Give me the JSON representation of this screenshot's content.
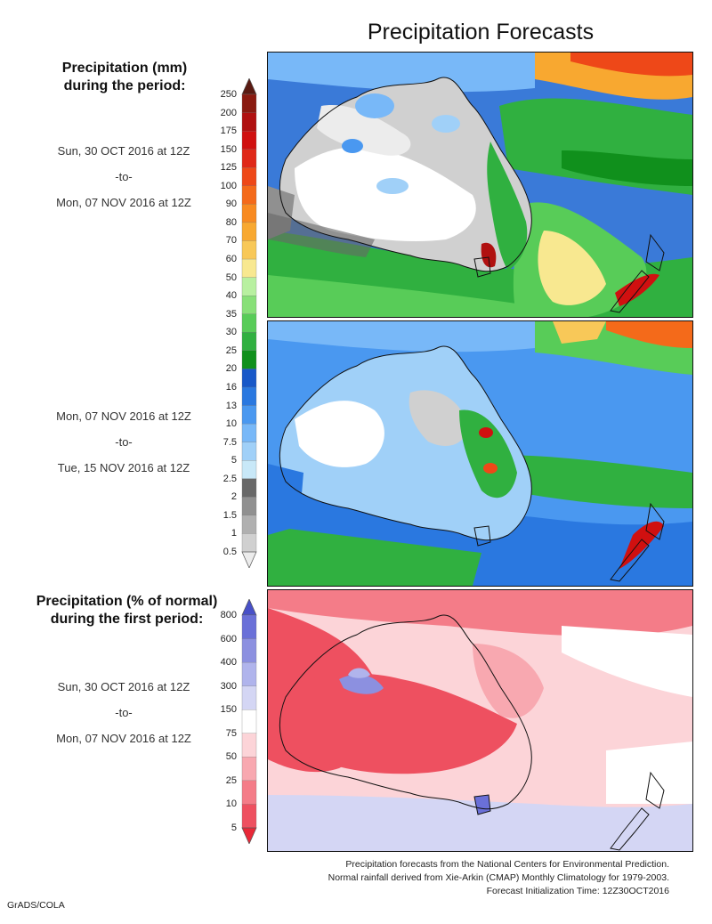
{
  "title": "Precipitation Forecasts",
  "precip_section": {
    "heading": [
      "Precipitation (mm)",
      "during the period:"
    ],
    "period1": {
      "start": "Sun, 30 OCT 2016 at 12Z",
      "sep": "-to-",
      "end": "Mon, 07 NOV 2016 at 12Z"
    },
    "period2": {
      "start": "Mon, 07 NOV 2016 at 12Z",
      "sep": "-to-",
      "end": "Tue, 15 NOV 2016 at 12Z"
    },
    "colorbar": {
      "labels": [
        "250",
        "200",
        "175",
        "150",
        "125",
        "100",
        "90",
        "80",
        "70",
        "60",
        "50",
        "40",
        "35",
        "30",
        "25",
        "20",
        "16",
        "13",
        "10",
        "7.5",
        "5",
        "2.5",
        "2",
        "1.5",
        "1",
        "0.5"
      ],
      "colors": [
        "#5a1a12",
        "#8a1a10",
        "#b01010",
        "#d01010",
        "#e02818",
        "#ee4818",
        "#f46a1a",
        "#f88a20",
        "#f8a830",
        "#f8c858",
        "#f8e890",
        "#b8f0a0",
        "#88e078",
        "#58cc58",
        "#30b040",
        "#10901c",
        "#1858c8",
        "#2a78e0",
        "#4a98f0",
        "#78b8f8",
        "#a0d0f8",
        "#c8e8f8",
        "#686868",
        "#909090",
        "#b0b0b0",
        "#d0d0d0",
        "#ececec"
      ]
    }
  },
  "percent_section": {
    "heading": [
      "Precipitation (% of normal)",
      "during the first period:"
    ],
    "period": {
      "start": "Sun, 30 OCT 2016 at 12Z",
      "sep": "-to-",
      "end": "Mon, 07 NOV 2016 at 12Z"
    },
    "colorbar": {
      "labels": [
        "800",
        "600",
        "400",
        "300",
        "150",
        "75",
        "50",
        "25",
        "10",
        "5"
      ],
      "colors": [
        "#4850c8",
        "#6a70d8",
        "#8c90e0",
        "#b0b4ec",
        "#d4d6f4",
        "#ffffff",
        "#fcd4d8",
        "#f8a8b0",
        "#f47c88",
        "#ee5060",
        "#e82838"
      ]
    }
  },
  "footer": {
    "line1": "Precipitation forecasts from the National Centers for Environmental Prediction.",
    "line2": "Normal rainfall derived from Xie-Arkin (CMAP) Monthly Climatology for 1979-2003.",
    "line3": "Forecast Initialization Time: 12Z30OCT2016"
  },
  "credit": "GrADS/COLA"
}
